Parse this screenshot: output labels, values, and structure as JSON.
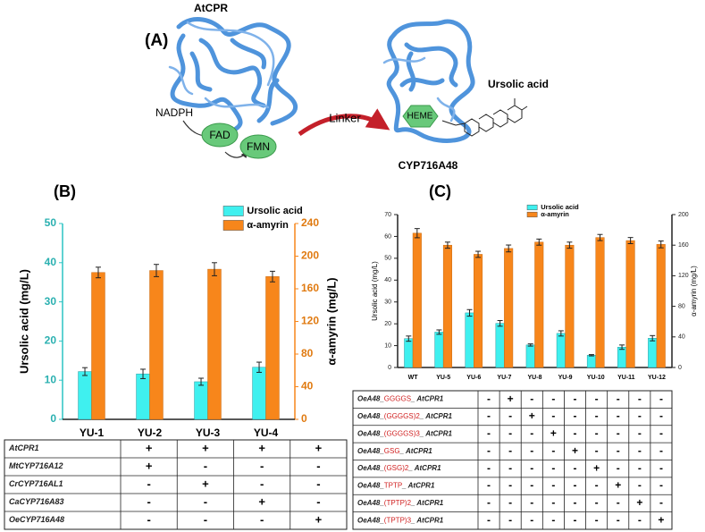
{
  "panel_a": {
    "label": "(A)",
    "reductase": "AtCPR",
    "cofactor": "NADPH",
    "fad": "FAD",
    "fmn": "FMN",
    "linker": "Linker",
    "heme": "HEME",
    "substrate": "Ursolic acid",
    "p450": "CYP716A48"
  },
  "chart_data": [
    {
      "type": "bar",
      "panel_label": "(B)",
      "y_label": "Ursolic acid (mg/L)",
      "y2_label": "α-amyrin (mg/L)",
      "categories": [
        "YU-1",
        "YU-2",
        "YU-3",
        "YU-4"
      ],
      "series": [
        {
          "name": "Ursolic acid",
          "color": "#3ff0ef",
          "values": [
            12.2,
            11.6,
            9.6,
            13.3
          ],
          "errors": [
            1.0,
            1.2,
            0.9,
            1.3
          ]
        },
        {
          "name": "α-amyrin",
          "color": "#f7861b",
          "axis": "y2",
          "values": [
            180,
            182.4,
            184,
            175
          ],
          "errors": [
            6.5,
            7.5,
            8,
            6.5
          ]
        }
      ],
      "ylim": [
        0,
        50
      ],
      "yticks": [
        0,
        10,
        20,
        30,
        40,
        50
      ],
      "y2lim": [
        0,
        240
      ],
      "y2ticks": [
        0,
        40,
        80,
        120,
        160,
        200,
        240
      ],
      "colored_axes": true,
      "legend": "upper right"
    },
    {
      "type": "bar",
      "panel_label": "(C)",
      "y_label": "Ursolic acid (mg/L)",
      "y2_label": "α-amyrin (mg/L)",
      "categories": [
        "WT",
        "YU-5",
        "YU-6",
        "YU-7",
        "YU-8",
        "YU-9",
        "YU-10",
        "YU-11",
        "YU-12"
      ],
      "series": [
        {
          "name": "Ursolic acid",
          "color": "#3ff0ef",
          "values": [
            13.2,
            16.2,
            25,
            20.2,
            10.3,
            15.6,
            5.6,
            9.3,
            13.4
          ],
          "errors": [
            1.2,
            1.0,
            1.5,
            1.3,
            0.5,
            1.2,
            0.3,
            1.0,
            1.2
          ]
        },
        {
          "name": "α-amyrin",
          "color": "#f7861b",
          "axis": "y2",
          "values": [
            175.7,
            160,
            148,
            155.7,
            164,
            160,
            170,
            166,
            161
          ],
          "errors": [
            6,
            4,
            4,
            4.5,
            4,
            4,
            4,
            4,
            4.5
          ]
        }
      ],
      "ylim": [
        0,
        70
      ],
      "yticks": [
        0,
        10,
        20,
        30,
        40,
        50,
        60,
        70
      ],
      "y2lim": [
        0,
        200
      ],
      "y2ticks": [
        0,
        40,
        80,
        120,
        160,
        200
      ],
      "colored_axes": false,
      "legend": "upper right"
    }
  ],
  "tables": [
    {
      "rows": [
        {
          "label": [
            "AtCPR1"
          ],
          "cells": [
            "+",
            "+",
            "+",
            "+"
          ]
        },
        {
          "label": [
            "MtCYP716A12"
          ],
          "cells": [
            "+",
            "-",
            "-",
            "-"
          ]
        },
        {
          "label": [
            "CrCYP716AL1"
          ],
          "cells": [
            "-",
            "+",
            "-",
            "-"
          ]
        },
        {
          "label": [
            "CaCYP716A83"
          ],
          "cells": [
            "-",
            "-",
            "+",
            "-"
          ]
        },
        {
          "label": [
            "OeCYP716A48"
          ],
          "cells": [
            "-",
            "-",
            "-",
            "+"
          ]
        }
      ]
    },
    {
      "rows": [
        {
          "label": [
            "OeA48_",
            "GGGGS",
            "_ AtCPR1"
          ],
          "cells": [
            "-",
            "+",
            "-",
            "-",
            "-",
            "-",
            "-",
            "-",
            "-"
          ]
        },
        {
          "label": [
            "OeA48_",
            "(GGGGS)2",
            "_ AtCPR1"
          ],
          "cells": [
            "-",
            "-",
            "+",
            "-",
            "-",
            "-",
            "-",
            "-",
            "-"
          ]
        },
        {
          "label": [
            "OeA48_",
            "(GGGGS)3",
            "_ AtCPR1"
          ],
          "cells": [
            "-",
            "-",
            "-",
            "+",
            "-",
            "-",
            "-",
            "-",
            "-"
          ]
        },
        {
          "label": [
            "OeA48_",
            "GSG",
            "_ AtCPR1"
          ],
          "cells": [
            "-",
            "-",
            "-",
            "-",
            "+",
            "-",
            "-",
            "-",
            "-"
          ]
        },
        {
          "label": [
            "OeA48_",
            "(GSG)2",
            "_ AtCPR1"
          ],
          "cells": [
            "-",
            "-",
            "-",
            "-",
            "-",
            "+",
            "-",
            "-",
            "-"
          ]
        },
        {
          "label": [
            "OeA48_",
            "TPTP",
            "_ AtCPR1"
          ],
          "cells": [
            "-",
            "-",
            "-",
            "-",
            "-",
            "-",
            "+",
            "-",
            "-"
          ]
        },
        {
          "label": [
            "OeA48_",
            "(TPTP)2",
            "_ AtCPR1"
          ],
          "cells": [
            "-",
            "-",
            "-",
            "-",
            "-",
            "-",
            "-",
            "+",
            "-"
          ]
        },
        {
          "label": [
            "OeA48_",
            "(TPTP)3",
            "_ AtCPR1"
          ],
          "cells": [
            "-",
            "-",
            "-",
            "-",
            "-",
            "-",
            "-",
            "-",
            "+"
          ]
        }
      ]
    }
  ]
}
